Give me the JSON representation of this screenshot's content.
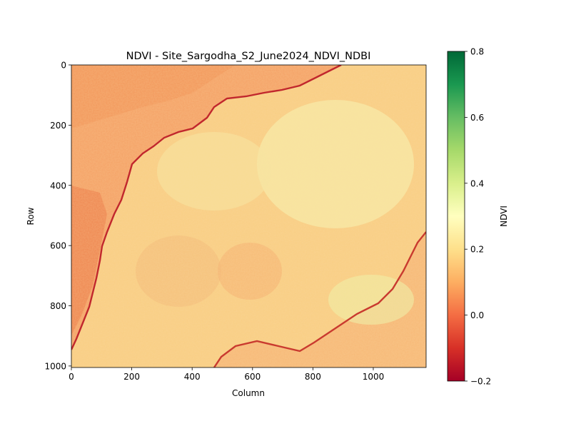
{
  "chart_data": {
    "type": "heatmap",
    "title": "NDVI - Site_Sargodha_S2_June2024_NDVI_NDBI",
    "xlabel": "Column",
    "ylabel": "Row",
    "xlim": [
      0,
      1175
    ],
    "ylim": [
      1005,
      0
    ],
    "x_ticks": [
      "0",
      "200",
      "400",
      "600",
      "800",
      "1000"
    ],
    "y_ticks": [
      "0",
      "200",
      "400",
      "600",
      "800",
      "1000"
    ],
    "x_tick_values": [
      0,
      200,
      400,
      600,
      800,
      1000
    ],
    "y_tick_values": [
      0,
      200,
      400,
      600,
      800,
      1000
    ],
    "colormap": "RdYlGn",
    "colormap_stops": [
      "#a50026",
      "#d73027",
      "#f46d43",
      "#fdae61",
      "#fee08b",
      "#ffffbf",
      "#d9ef8b",
      "#a6d96a",
      "#66bd63",
      "#1a9850",
      "#006837"
    ],
    "colorbar": {
      "label": "NDVI",
      "vmin": -0.2,
      "vmax": 0.8,
      "ticks": [
        "−0.2",
        "0.0",
        "0.2",
        "0.4",
        "0.6",
        "0.8"
      ],
      "tick_values": [
        -0.2,
        0.0,
        0.2,
        0.4,
        0.6,
        0.8
      ]
    },
    "grid": false
  }
}
